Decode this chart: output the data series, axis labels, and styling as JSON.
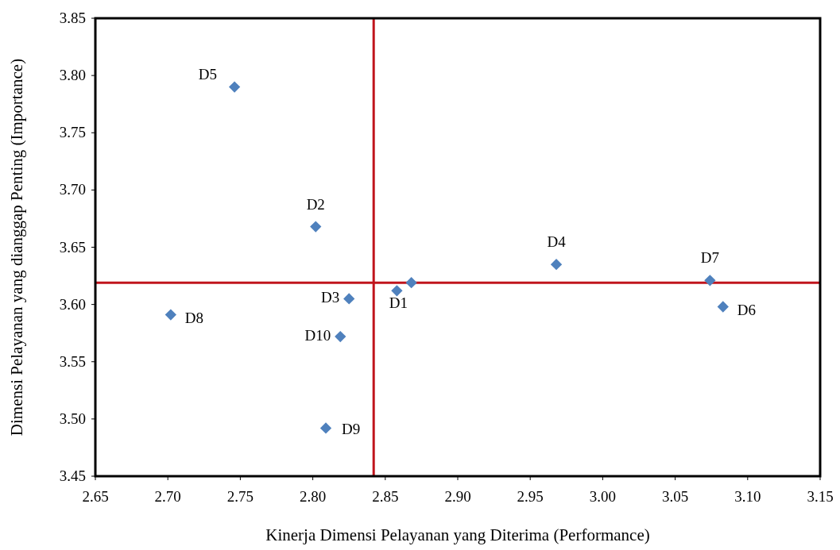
{
  "chart_data": {
    "type": "scatter",
    "xlabel": "Kinerja Dimensi Pelayanan yang Diterima (Performance)",
    "ylabel": "Dimensi Pelayanan yang dianggap Penting (Importance)",
    "x": [
      2.858,
      2.802,
      2.825,
      2.968,
      2.746,
      3.083,
      3.074,
      2.702,
      2.809,
      2.819,
      2.868
    ],
    "series": [
      {
        "color": "#4f81bd",
        "values": [
          3.612,
          3.668,
          3.605,
          3.635,
          3.79,
          3.598,
          3.621,
          3.591,
          3.492,
          3.572,
          3.619
        ]
      }
    ],
    "xlim": [
      2.65,
      3.15
    ],
    "xticks": [
      {
        "value": 2.65,
        "label": "2.65"
      },
      {
        "value": 2.7,
        "label": "2.70"
      },
      {
        "value": 2.75,
        "label": "2.75"
      },
      {
        "value": 2.8,
        "label": "2.80"
      },
      {
        "value": 2.85,
        "label": "2.85"
      },
      {
        "value": 2.9,
        "label": "2.90"
      },
      {
        "value": 2.95,
        "label": "2.95"
      },
      {
        "value": 3.0,
        "label": "3.00"
      },
      {
        "value": 3.05,
        "label": "3.05"
      },
      {
        "value": 3.1,
        "label": "3.10"
      },
      {
        "value": 3.15,
        "label": "3.15"
      }
    ],
    "ylim": [
      3.45,
      3.85
    ],
    "yticks": [
      {
        "value": 3.45,
        "label": "3.45"
      },
      {
        "value": 3.5,
        "label": "3.50"
      },
      {
        "value": 3.55,
        "label": "3.55"
      },
      {
        "value": 3.6,
        "label": "3.60"
      },
      {
        "value": 3.65,
        "label": "3.65"
      },
      {
        "value": 3.7,
        "label": "3.70"
      },
      {
        "value": 3.75,
        "label": "3.75"
      },
      {
        "value": 3.8,
        "label": "3.80"
      },
      {
        "value": 3.85,
        "label": "3.85"
      }
    ],
    "ref_lines": [
      {
        "axis": "x",
        "value": 2.842,
        "color": "#c0141c"
      },
      {
        "axis": "y",
        "value": 3.619,
        "color": "#c0141c"
      }
    ],
    "annotations": [
      {
        "text": "D1",
        "x": 2.858,
        "y": 3.612
      },
      {
        "text": "D2",
        "x": 2.802,
        "y": 3.668
      },
      {
        "text": "D3",
        "x": 2.825,
        "y": 3.605
      },
      {
        "text": "D4",
        "x": 2.968,
        "y": 3.635
      },
      {
        "text": "D5",
        "x": 2.746,
        "y": 3.79
      },
      {
        "text": "D6",
        "x": 3.083,
        "y": 3.598
      },
      {
        "text": "D7",
        "x": 3.074,
        "y": 3.621
      },
      {
        "text": "D8",
        "x": 2.702,
        "y": 3.591
      },
      {
        "text": "D9",
        "x": 2.809,
        "y": 3.492
      },
      {
        "text": "D10",
        "x": 2.819,
        "y": 3.572
      }
    ],
    "marker": "diamond",
    "grid": false
  }
}
